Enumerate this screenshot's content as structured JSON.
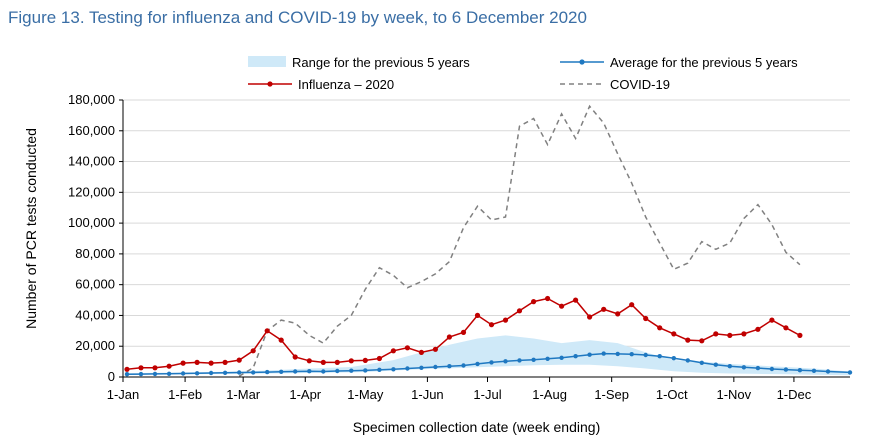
{
  "figure_title": "Figure 13. Testing for influenza and COVID-19 by week, to 6 December 2020",
  "chart_data": {
    "type": "line",
    "title": "Figure 13. Testing for influenza and COVID-19 by week, to 6 December 2020",
    "xlabel": "Specimen collection date (week ending)",
    "ylabel": "Number of PCR tests conducted",
    "ylim": [
      0,
      180000
    ],
    "yticks": [
      0,
      20000,
      40000,
      60000,
      80000,
      100000,
      120000,
      140000,
      160000,
      180000
    ],
    "ytick_labels": [
      "0",
      "20,000",
      "40,000",
      "60,000",
      "80,000",
      "100,000",
      "120,000",
      "140,000",
      "160,000",
      "180,000"
    ],
    "xlim_day": [
      1,
      364
    ],
    "xticks": [
      {
        "label": "1-Jan",
        "day": 1
      },
      {
        "label": "1-Feb",
        "day": 32
      },
      {
        "label": "1-Mar",
        "day": 61
      },
      {
        "label": "1-Apr",
        "day": 92
      },
      {
        "label": "1-May",
        "day": 122
      },
      {
        "label": "1-Jun",
        "day": 153
      },
      {
        "label": "1-Jul",
        "day": 183
      },
      {
        "label": "1-Aug",
        "day": 214
      },
      {
        "label": "1-Sep",
        "day": 245
      },
      {
        "label": "1-Oct",
        "day": 275
      },
      {
        "label": "1-Nov",
        "day": 306
      },
      {
        "label": "1-Dec",
        "day": 336
      }
    ],
    "legend": [
      {
        "name": "Range for the previous 5 years",
        "kind": "area",
        "color": "#cfe9f8"
      },
      {
        "name": "Average for the previous 5 years",
        "kind": "line-marker",
        "color": "#1f78c1"
      },
      {
        "name": "Influenza – 2020",
        "kind": "line-marker",
        "color": "#c00000"
      },
      {
        "name": "COVID-19",
        "kind": "dashed",
        "color": "#808080"
      }
    ],
    "legend_position": "top",
    "series": [
      {
        "name": "Range for the previous 5 years",
        "kind": "band",
        "color": "#cfe9f8",
        "x_day": [
          3,
          31,
          59,
          73,
          94,
          115,
          122,
          136,
          150,
          164,
          178,
          192,
          206,
          220,
          234,
          248,
          262,
          276,
          290,
          304,
          318,
          332,
          346,
          364
        ],
        "lower": [
          1500,
          1800,
          2000,
          2300,
          2600,
          3000,
          3200,
          4200,
          5000,
          5600,
          6400,
          7000,
          7600,
          8000,
          8000,
          7000,
          5500,
          3700,
          2800,
          2300,
          2000,
          1800,
          1500,
          1200
        ],
        "upper": [
          2500,
          3000,
          3500,
          4200,
          5500,
          6500,
          8000,
          11000,
          16000,
          21000,
          25000,
          27000,
          25000,
          22000,
          24000,
          22000,
          16000,
          11000,
          10000,
          8500,
          7500,
          6500,
          5500,
          3500
        ]
      },
      {
        "name": "Average for the previous 5 years",
        "kind": "line-marker",
        "color": "#1f78c1",
        "x_day": [
          3,
          10,
          17,
          24,
          31,
          38,
          45,
          52,
          59,
          66,
          73,
          80,
          87,
          94,
          101,
          108,
          115,
          122,
          129,
          136,
          143,
          150,
          157,
          164,
          171,
          178,
          185,
          192,
          199,
          206,
          213,
          220,
          227,
          234,
          241,
          248,
          255,
          262,
          269,
          276,
          283,
          290,
          297,
          304,
          311,
          318,
          325,
          332,
          339,
          346,
          353,
          364
        ],
        "values": [
          1800,
          1900,
          2000,
          2100,
          2300,
          2400,
          2600,
          2700,
          2900,
          3000,
          3200,
          3400,
          3600,
          3800,
          3600,
          3900,
          4100,
          4300,
          4700,
          5000,
          5500,
          6000,
          6500,
          7000,
          7500,
          8500,
          9500,
          10200,
          10800,
          11200,
          11800,
          12500,
          13500,
          14500,
          15200,
          15000,
          14800,
          14300,
          13500,
          12200,
          10800,
          9200,
          8000,
          7000,
          6300,
          5800,
          5200,
          4800,
          4400,
          4000,
          3600,
          3000
        ]
      },
      {
        "name": "Influenza – 2020",
        "kind": "line-marker",
        "color": "#c00000",
        "x_day": [
          3,
          10,
          17,
          24,
          31,
          38,
          45,
          52,
          59,
          66,
          73,
          80,
          87,
          94,
          101,
          108,
          115,
          122,
          129,
          136,
          143,
          150,
          157,
          164,
          171,
          178,
          185,
          192,
          199,
          206,
          213,
          220,
          227,
          234,
          241,
          248,
          255,
          262,
          269,
          276,
          283,
          290,
          297,
          304,
          311,
          318,
          325,
          332,
          339
        ],
        "values": [
          5000,
          6000,
          6000,
          7000,
          9000,
          9500,
          9000,
          9500,
          11000,
          17000,
          30000,
          24000,
          13000,
          10500,
          9500,
          9500,
          10500,
          10800,
          12000,
          17000,
          19000,
          16000,
          18000,
          26000,
          29000,
          40000,
          34000,
          37000,
          43000,
          49000,
          51000,
          46000,
          50000,
          39000,
          44000,
          41000,
          47000,
          38000,
          32000,
          28000,
          24000,
          23500,
          28000,
          27000,
          28000,
          31000,
          37000,
          32000,
          27000
        ]
      },
      {
        "name": "COVID-19",
        "kind": "dashed",
        "color": "#808080",
        "x_day": [
          59,
          66,
          73,
          80,
          87,
          94,
          101,
          108,
          115,
          122,
          129,
          136,
          143,
          150,
          157,
          164,
          171,
          178,
          185,
          192,
          199,
          206,
          213,
          220,
          227,
          234,
          241,
          248,
          255,
          262,
          269,
          276,
          283,
          290,
          297,
          304,
          311,
          318,
          325,
          332,
          339
        ],
        "values": [
          500,
          6000,
          30000,
          37000,
          35000,
          27000,
          22000,
          33000,
          40000,
          57000,
          71000,
          66000,
          58000,
          62000,
          67000,
          75000,
          97000,
          111000,
          102000,
          104000,
          163000,
          168000,
          151000,
          171000,
          155000,
          176000,
          165000,
          145000,
          126000,
          104000,
          87000,
          70000,
          74000,
          88000,
          83000,
          87000,
          103000,
          112000,
          99000,
          81000,
          73000
        ]
      }
    ]
  }
}
